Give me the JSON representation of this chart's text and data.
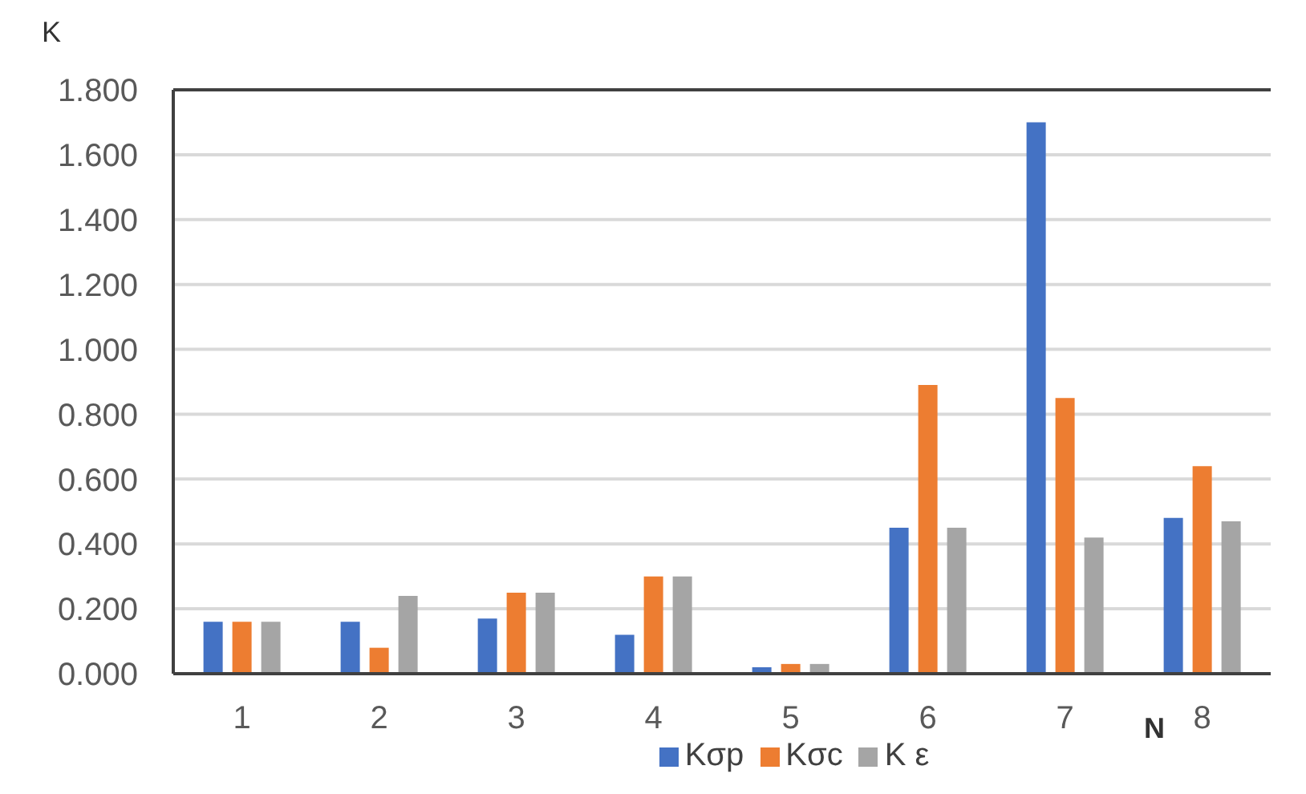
{
  "chart_data": {
    "type": "bar",
    "xlabel": "N",
    "ylabel": "K",
    "categories": [
      "1",
      "2",
      "3",
      "4",
      "5",
      "6",
      "7",
      "8"
    ],
    "series": [
      {
        "name": "Kσp",
        "color": "#4472c4",
        "values": [
          0.16,
          0.16,
          0.17,
          0.12,
          0.02,
          0.45,
          1.7,
          0.48
        ]
      },
      {
        "name": "Kσc",
        "color": "#ed7d31",
        "values": [
          0.16,
          0.08,
          0.25,
          0.3,
          0.03,
          0.89,
          0.85,
          0.64
        ]
      },
      {
        "name": "K ε",
        "color": "#a5a5a5",
        "values": [
          0.16,
          0.24,
          0.25,
          0.3,
          0.03,
          0.45,
          0.42,
          0.47
        ]
      }
    ],
    "ylim": [
      0,
      1.8
    ],
    "yticks": [
      {
        "value": 0,
        "label": "0.000"
      },
      {
        "value": 0.2,
        "label": "0.200"
      },
      {
        "value": 0.4,
        "label": "0.400"
      },
      {
        "value": 0.6,
        "label": "0.600"
      },
      {
        "value": 0.8,
        "label": "0.800"
      },
      {
        "value": 1,
        "label": "1.000"
      },
      {
        "value": 1.2,
        "label": "1.200"
      },
      {
        "value": 1.4,
        "label": "1.400"
      },
      {
        "value": 1.6,
        "label": "1.600"
      },
      {
        "value": 1.8,
        "label": "1.800"
      }
    ],
    "grid": "y",
    "legend": "bottom"
  }
}
